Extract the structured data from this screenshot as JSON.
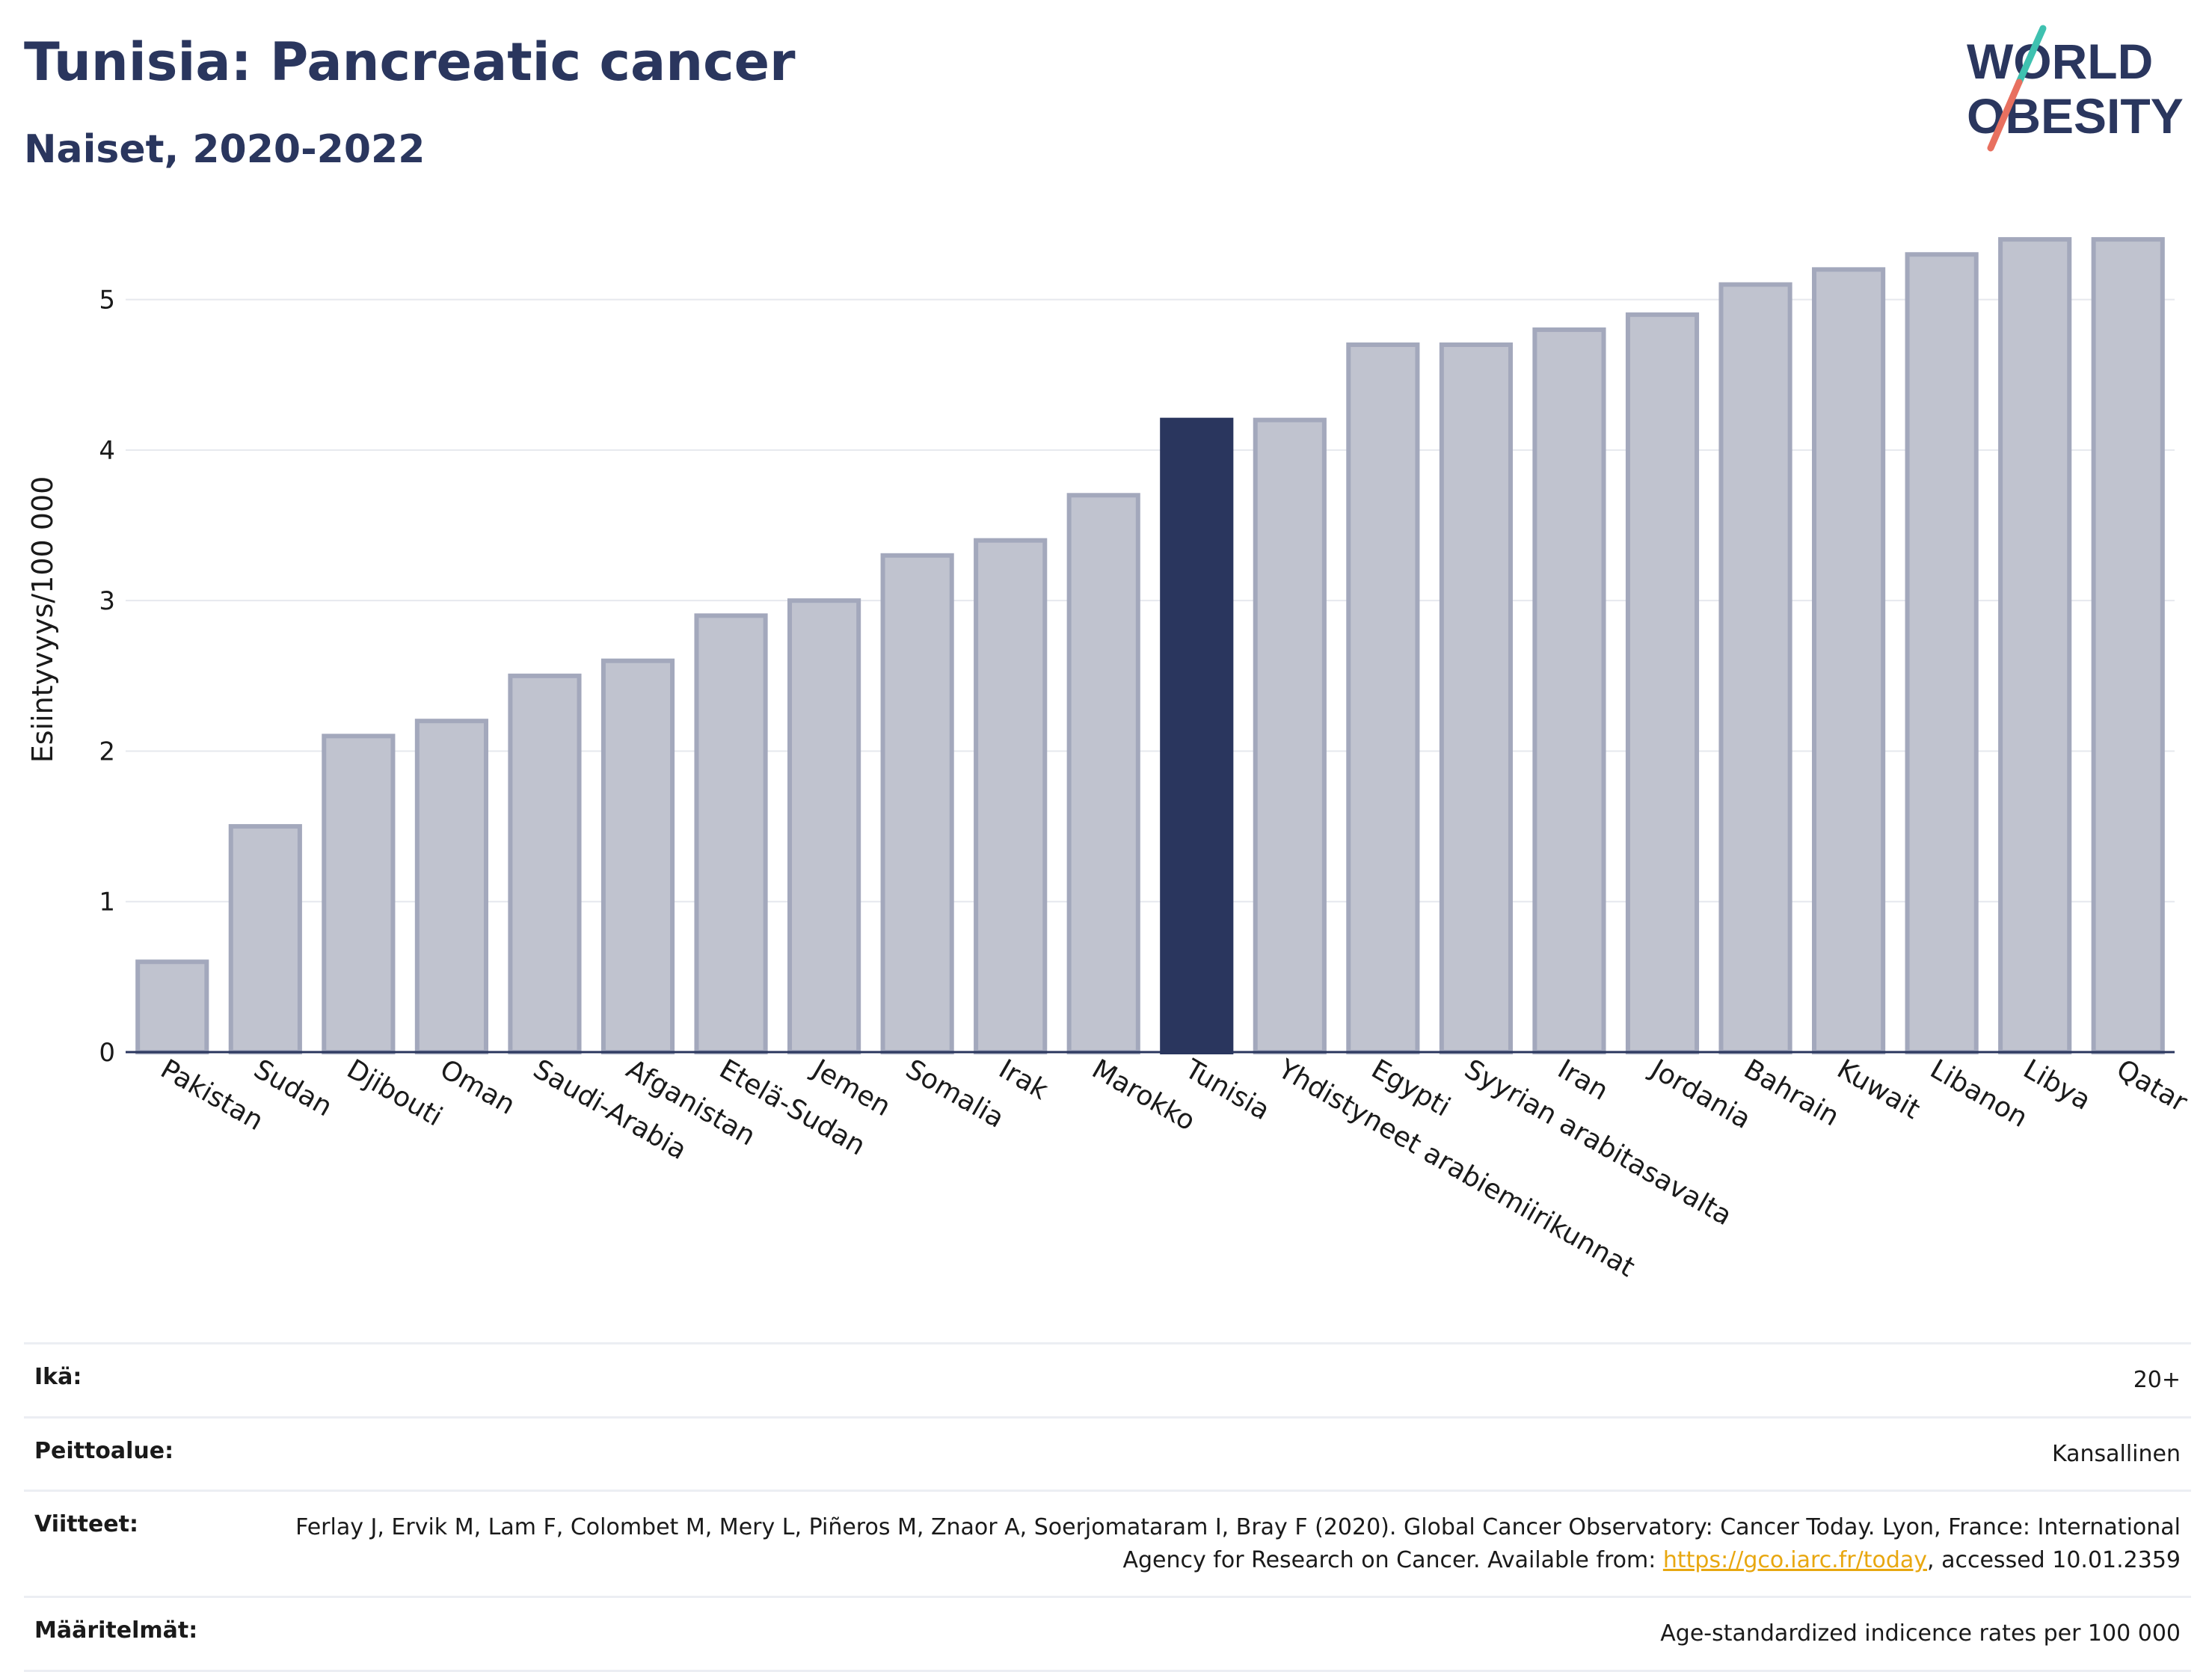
{
  "header": {
    "title": "Tunisia: Pancreatic cancer",
    "subtitle": "Naiset, 2020-2022"
  },
  "logo": {
    "line1": "WORLD",
    "line2": "OBESITY"
  },
  "chart_data": {
    "type": "bar",
    "title": "Tunisia: Pancreatic cancer",
    "subtitle": "Naiset, 2020-2022",
    "xlabel": "",
    "ylabel": "Esiintyvyys/100 000",
    "ylim": [
      0,
      5.5
    ],
    "yticks": [
      0,
      1,
      2,
      3,
      4,
      5
    ],
    "grid": true,
    "categories": [
      "Pakistan",
      "Sudan",
      "Djibouti",
      "Oman",
      "Saudi-Arabia",
      "Afganistan",
      "Etelä-Sudan",
      "Jemen",
      "Somalia",
      "Irak",
      "Marokko",
      "Tunisia",
      "Yhdistyneet arabiemiirikunnat",
      "Egypti",
      "Syyrian arabitasavalta",
      "Iran",
      "Jordania",
      "Bahrain",
      "Kuwait",
      "Libanon",
      "Libya",
      "Qatar"
    ],
    "values": [
      0.6,
      1.5,
      2.1,
      2.2,
      2.5,
      2.6,
      2.9,
      3.0,
      3.3,
      3.4,
      3.7,
      4.2,
      4.2,
      4.7,
      4.7,
      4.8,
      4.9,
      5.1,
      5.2,
      5.3,
      5.4,
      5.4
    ],
    "highlight": "Tunisia",
    "colors": {
      "bar": "#c0c3cf",
      "bar_border": "#a3a8bc",
      "highlight": "#2a365e",
      "axis": "#2a365e",
      "grid": "#e6e8ee"
    }
  },
  "meta": [
    {
      "key": "Ikä:",
      "value": "20+"
    },
    {
      "key": "Peittoalue:",
      "value": "Kansallinen"
    },
    {
      "key": "Viitteet:",
      "value_pre": "Ferlay J, Ervik M, Lam F, Colombet M, Mery L, Piñeros M, Znaor A, Soerjomataram I, Bray F (2020). Global Cancer Observatory: Cancer Today. Lyon, France: International Agency for Research on Cancer. Available from: ",
      "link": "https://gco.iarc.fr/today",
      "value_post": ", accessed 10.01.2359"
    },
    {
      "key": "Määritelmät:",
      "value": "Age-standardized indicence rates per 100 000"
    }
  ]
}
